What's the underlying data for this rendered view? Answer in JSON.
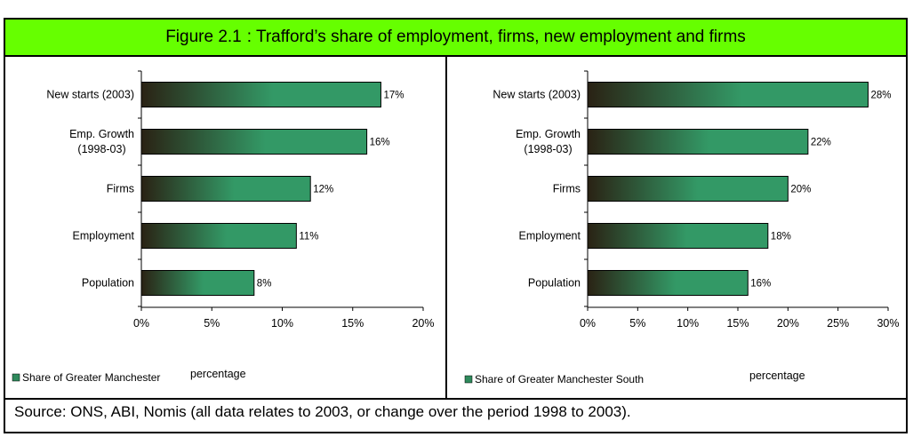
{
  "header": {
    "figure_number": "Figure 2.1",
    "title": ": Trafford’s share of employment, firms, new employment and firms"
  },
  "source_note": "Source: ONS, ABI, Nomis (all data relates to 2003, or change over the period 1998 to 2003).",
  "colors": {
    "header_bg": "#66ff00",
    "bar_dark": "#2a2214",
    "bar_light": "#339966",
    "legend_swatch": "#2f8a5c"
  },
  "chart_data": [
    {
      "type": "bar",
      "orientation": "horizontal",
      "categories": [
        "New starts (2003)",
        [
          "Emp. Growth",
          "(1998-03)"
        ],
        "Firms",
        "Employment",
        "Population"
      ],
      "values": [
        17,
        16,
        12,
        11,
        8
      ],
      "data_labels": [
        "17%",
        "16%",
        "12%",
        "11%",
        "8%"
      ],
      "xlim": [
        0,
        20
      ],
      "xticks": [
        "0%",
        "5%",
        "10%",
        "15%",
        "20%"
      ],
      "xlabel": "percentage",
      "legend": "Share of Greater Manchester",
      "legend_position": "bottom-left"
    },
    {
      "type": "bar",
      "orientation": "horizontal",
      "categories": [
        "New starts (2003)",
        [
          "Emp. Growth",
          "(1998-03)"
        ],
        "Firms",
        "Employment",
        "Population"
      ],
      "values": [
        28,
        22,
        20,
        18,
        16
      ],
      "data_labels": [
        "28%",
        "22%",
        "20%",
        "18%",
        "16%"
      ],
      "xlim": [
        0,
        30
      ],
      "xticks": [
        "0%",
        "5%",
        "10%",
        "15%",
        "20%",
        "25%",
        "30%"
      ],
      "xlabel": "percentage",
      "legend": "Share of Greater Manchester South",
      "legend_position": "bottom-left"
    }
  ]
}
